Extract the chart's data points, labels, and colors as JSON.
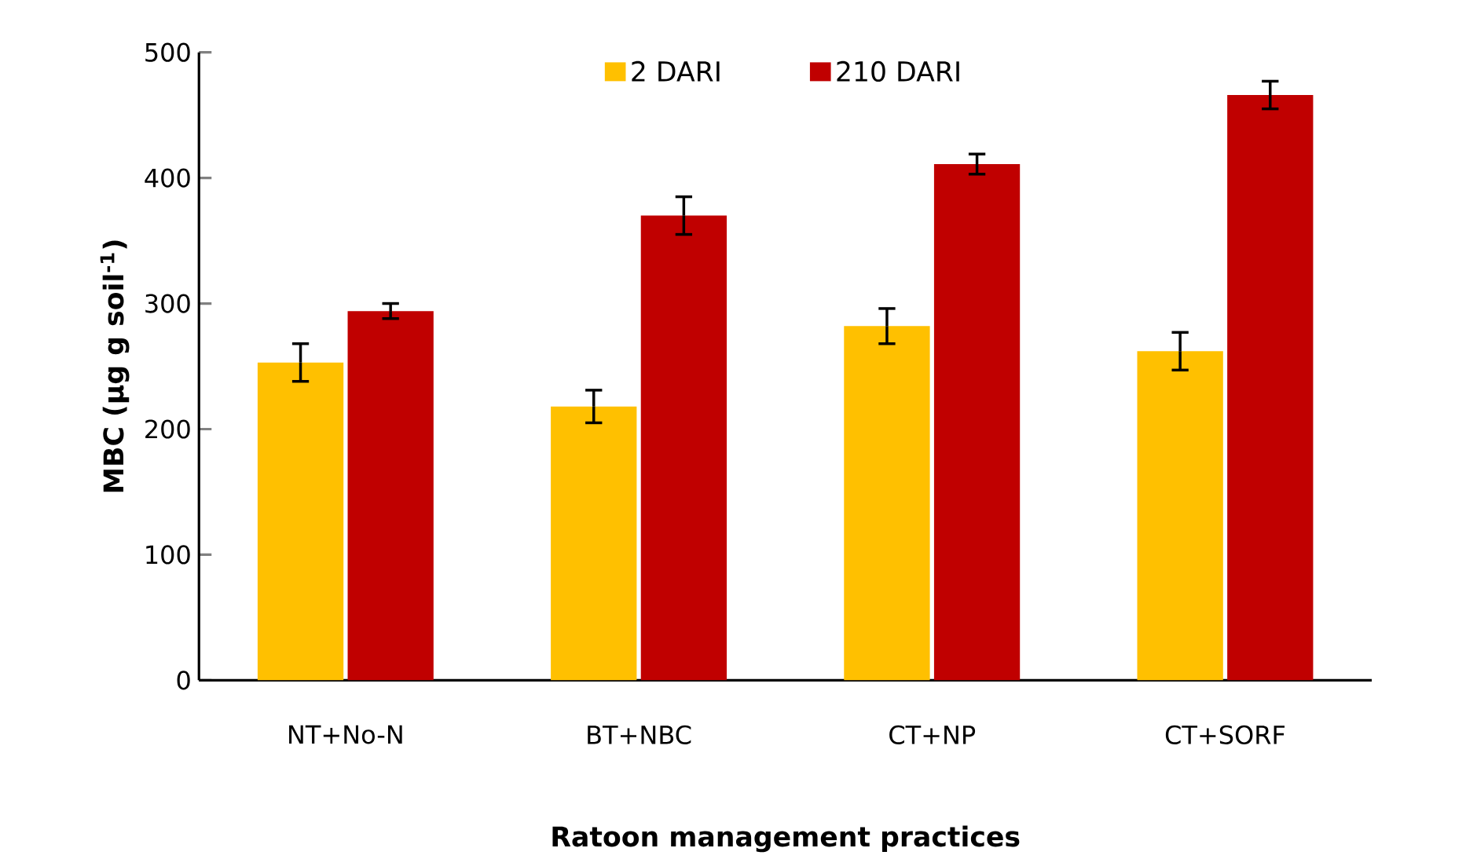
{
  "chart_data": {
    "type": "bar",
    "xlabel": "Ratoon management practices",
    "ylabel": "MBC (µg g soil$^{-1}$)",
    "categories": [
      "NT+No-N",
      "BT+NBC",
      "CT+NP",
      "CT+SORF"
    ],
    "series": [
      {
        "name": "2 DARI",
        "color": "#ffc000",
        "values": [
          253,
          218,
          282,
          262
        ],
        "errors": [
          15,
          13,
          14,
          15
        ]
      },
      {
        "name": "210 DARI",
        "color": "#c00000",
        "values": [
          294,
          370,
          411,
          466
        ],
        "errors": [
          6,
          15,
          8,
          11
        ]
      }
    ],
    "ylim": [
      0,
      500
    ],
    "yticks": [
      0,
      100,
      200,
      300,
      400,
      500
    ],
    "grid": false,
    "legend": "top"
  }
}
